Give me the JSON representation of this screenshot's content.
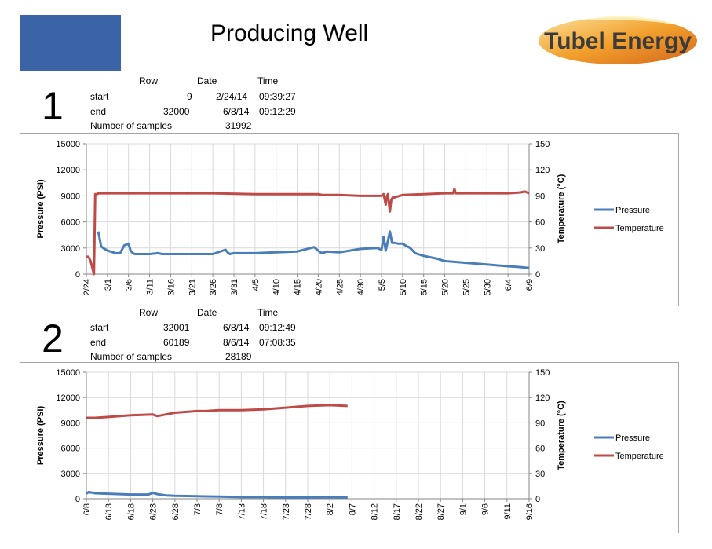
{
  "slide": {
    "title": "Producing Well",
    "logo_text": "Tubel Energy",
    "colors": {
      "block": "#3a64a6",
      "pressure": "#4a7ebb",
      "temperature": "#be4b48"
    }
  },
  "sections": [
    {
      "number": "1",
      "table": {
        "headers": [
          "Row",
          "Date",
          "Time"
        ],
        "rows": [
          {
            "label": "start",
            "row": "9",
            "date": "2/24/14",
            "time": "09:39:27"
          },
          {
            "label": "end",
            "row": "32000",
            "date": "6/8/14",
            "time": "09:12:29"
          }
        ],
        "samples_label": "Number of samples",
        "samples_value": "31992"
      }
    },
    {
      "number": "2",
      "table": {
        "headers": [
          "Row",
          "Date",
          "Time"
        ],
        "rows": [
          {
            "label": "start",
            "row": "32001",
            "date": "6/8/14",
            "time": "09:12:49"
          },
          {
            "label": "end",
            "row": "60189",
            "date": "8/6/14",
            "time": "07:08:35"
          }
        ],
        "samples_label": "Number of samples",
        "samples_value": "28189"
      }
    }
  ],
  "chart_data": [
    {
      "type": "line",
      "ylabel": "Pressure (PSI)",
      "y2label": "Temperature (°C)",
      "ylim": [
        0,
        15000
      ],
      "y2lim": [
        0,
        150
      ],
      "yticks": [
        "0",
        "3000",
        "6000",
        "9000",
        "12000",
        "15000"
      ],
      "y2ticks": [
        "0",
        "30",
        "60",
        "90",
        "120",
        "150"
      ],
      "categories": [
        "2/24",
        "3/1",
        "3/6",
        "3/11",
        "3/16",
        "3/21",
        "3/26",
        "3/31",
        "4/5",
        "4/10",
        "4/15",
        "4/20",
        "4/25",
        "4/30",
        "5/5",
        "5/10",
        "5/15",
        "5/20",
        "5/25",
        "5/30",
        "6/4",
        "6/9"
      ],
      "legend_position": "right",
      "series": [
        {
          "name": "Pressure",
          "axis": "left",
          "x": [
            0,
            2.5,
            2.8,
            3,
            3.5,
            4,
            5,
            7,
            8,
            9,
            10,
            10.5,
            11,
            11.5,
            12,
            15,
            17,
            18,
            19,
            20,
            21,
            22,
            25,
            30,
            33,
            33.5,
            34,
            35,
            40,
            45,
            50,
            54,
            55,
            55.5,
            56,
            57,
            60,
            65,
            69,
            70,
            70.5,
            71,
            72,
            72.5,
            73,
            74,
            75,
            76,
            76.5,
            77,
            78,
            80,
            83,
            85,
            90,
            95,
            100,
            103,
            105
          ],
          "values": [
            null,
            null,
            4900,
            4500,
            3200,
            3000,
            2700,
            2400,
            2400,
            3300,
            3500,
            2700,
            2400,
            2300,
            2300,
            2300,
            2400,
            2300,
            2300,
            2300,
            2300,
            2300,
            2300,
            2300,
            2800,
            2500,
            2300,
            2400,
            2400,
            2500,
            2600,
            3100,
            2700,
            2500,
            2400,
            2600,
            2500,
            2900,
            3000,
            2800,
            4300,
            2700,
            4900,
            3600,
            3600,
            3500,
            3500,
            3200,
            3100,
            2900,
            2400,
            2100,
            1800,
            1500,
            1300,
            1100,
            900,
            800,
            700
          ]
        },
        {
          "name": "Temperature",
          "axis": "right",
          "x": [
            0,
            0.5,
            1,
            1.8,
            2.1,
            2.5,
            3,
            5,
            10,
            20,
            30,
            40,
            50,
            55,
            56,
            60,
            65,
            70,
            70.5,
            71,
            71.2,
            71.5,
            72,
            72.3,
            72.6,
            73,
            75,
            80,
            85,
            87,
            87.3,
            87.6,
            90,
            100,
            103,
            104,
            105
          ],
          "values": [
            20,
            20,
            15,
            0,
            92,
            92,
            93,
            93,
            93,
            93,
            93,
            92,
            92,
            92,
            91,
            91,
            90,
            90,
            92,
            80,
            88,
            92,
            72,
            85,
            88,
            88,
            91,
            92,
            93,
            93,
            98,
            93,
            93,
            93,
            94,
            95,
            93
          ]
        }
      ]
    },
    {
      "type": "line",
      "ylabel": "Pressure (PSI)",
      "y2label": "Temperature (°C)",
      "ylim": [
        0,
        15000
      ],
      "y2lim": [
        0,
        150
      ],
      "yticks": [
        "0",
        "3000",
        "6000",
        "9000",
        "12000",
        "15000"
      ],
      "y2ticks": [
        "0",
        "30",
        "60",
        "90",
        "120",
        "150"
      ],
      "categories": [
        "6/8",
        "6/13",
        "6/18",
        "6/23",
        "6/28",
        "7/3",
        "7/8",
        "7/13",
        "7/18",
        "7/23",
        "7/28",
        "8/2",
        "8/7",
        "8/12",
        "8/17",
        "8/22",
        "8/27",
        "9/1",
        "9/6",
        "9/11",
        "9/16"
      ],
      "legend_position": "right",
      "series": [
        {
          "name": "Pressure",
          "axis": "left",
          "x": [
            0,
            0.5,
            2,
            5,
            10,
            14,
            15,
            16,
            18,
            20,
            25,
            30,
            35,
            40,
            45,
            50,
            55,
            59
          ],
          "values": [
            600,
            800,
            650,
            600,
            500,
            500,
            700,
            550,
            400,
            350,
            300,
            250,
            200,
            200,
            150,
            150,
            200,
            150
          ]
        },
        {
          "name": "Temperature",
          "axis": "right",
          "x": [
            0,
            0.5,
            2,
            5,
            10,
            15,
            16,
            18,
            20,
            25,
            27,
            30,
            35,
            40,
            45,
            50,
            55,
            59
          ],
          "values": [
            96,
            96,
            96,
            97,
            99,
            100,
            98,
            100,
            102,
            104,
            104,
            105,
            105,
            106,
            108,
            110,
            111,
            110
          ]
        }
      ]
    }
  ]
}
